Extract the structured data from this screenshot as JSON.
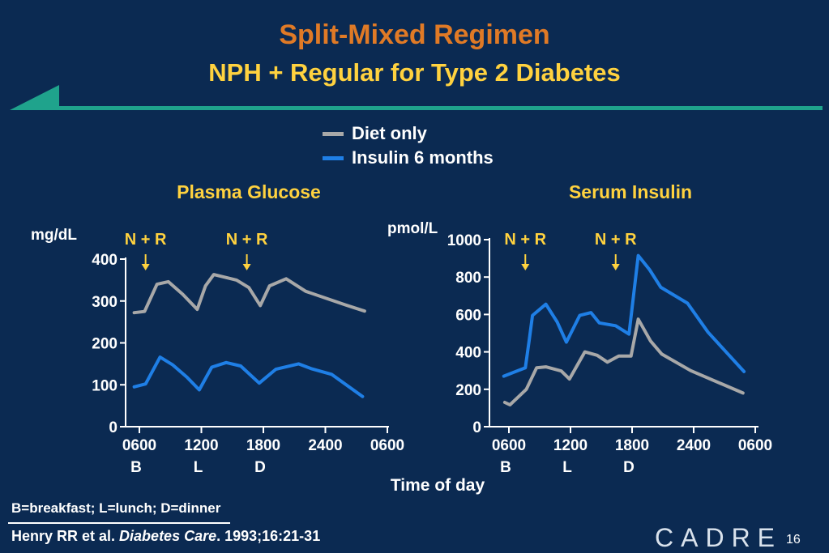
{
  "header": {
    "title": "Split-Mixed Regimen",
    "subtitle": "NPH + Regular for Type 2 Diabetes"
  },
  "legend": {
    "items": [
      {
        "label": "Diet only",
        "color": "#a8a8a8"
      },
      {
        "label": "Insulin 6 months",
        "color": "#1f7fe6"
      }
    ]
  },
  "colors": {
    "background": "#0b2a52",
    "accent": "#e07a26",
    "highlight": "#ffd23f",
    "teal": "#1fa38c"
  },
  "footer": {
    "time_label": "Time of day",
    "note": "B=breakfast; L=lunch; D=dinner",
    "citation_authors": "Henry RR et al. ",
    "citation_journal": "Diabetes Care",
    "citation_rest": ". 1993;16:21-31",
    "logo": "CADRE",
    "page_number": "16"
  },
  "chart_data": [
    {
      "type": "line",
      "title": "Plasma Glucose",
      "ylabel": "mg/dL",
      "ylim": [
        0,
        400
      ],
      "yticks": [
        0,
        100,
        200,
        300,
        400
      ],
      "xlim": [
        5.5,
        30
      ],
      "xticks": [
        {
          "x": 6,
          "label": "0600",
          "meal": "B"
        },
        {
          "x": 12,
          "label": "1200",
          "meal": "L"
        },
        {
          "x": 18,
          "label": "1800",
          "meal": "D"
        },
        {
          "x": 24,
          "label": "2400",
          "meal": ""
        },
        {
          "x": 30,
          "label": "0600",
          "meal": ""
        }
      ],
      "annotations": [
        {
          "x": 6.6,
          "label": "N + R"
        },
        {
          "x": 16.4,
          "label": "N + R"
        }
      ],
      "series": [
        {
          "name": "Diet only",
          "color": "#a8a8a8",
          "x": [
            5.5,
            6.5,
            7.7,
            8.8,
            10.2,
            11.6,
            12.4,
            13.2,
            15.4,
            16.6,
            17.7,
            18.6,
            20.2,
            22.1,
            25.9,
            27.8
          ],
          "y": [
            272,
            275,
            340,
            346,
            316,
            280,
            336,
            363,
            350,
            332,
            289,
            336,
            353,
            323,
            291,
            276
          ]
        },
        {
          "name": "Insulin 6 months",
          "color": "#1f7fe6",
          "x": [
            5.5,
            6.6,
            8.0,
            9.2,
            10.6,
            11.8,
            13.0,
            14.4,
            15.8,
            17.6,
            19.2,
            21.4,
            22.7,
            24.6,
            27.6
          ],
          "y": [
            95,
            102,
            166,
            148,
            118,
            88,
            142,
            153,
            145,
            104,
            137,
            150,
            138,
            125,
            72
          ]
        }
      ]
    },
    {
      "type": "line",
      "title": "Serum Insulin",
      "ylabel": "pmol/L",
      "ylim": [
        0,
        1000
      ],
      "yticks": [
        0,
        200,
        400,
        600,
        800,
        1000
      ],
      "xlim": [
        5.5,
        30
      ],
      "xticks": [
        {
          "x": 6,
          "label": "0600",
          "meal": "B"
        },
        {
          "x": 12,
          "label": "1200",
          "meal": "L"
        },
        {
          "x": 18,
          "label": "1800",
          "meal": "D"
        },
        {
          "x": 24,
          "label": "2400",
          "meal": ""
        },
        {
          "x": 30,
          "label": "0600",
          "meal": ""
        }
      ],
      "annotations": [
        {
          "x": 7.6,
          "label": "N + R"
        },
        {
          "x": 16.4,
          "label": "N + R"
        }
      ],
      "series": [
        {
          "name": "Diet only",
          "color": "#a8a8a8",
          "x": [
            5.6,
            6.1,
            7.7,
            8.7,
            9.6,
            11.1,
            11.9,
            13.4,
            14.6,
            15.6,
            16.7,
            17.9,
            18.6,
            19.8,
            20.9,
            23.7,
            28.8
          ],
          "y": [
            130,
            117,
            200,
            315,
            320,
            298,
            255,
            400,
            382,
            345,
            378,
            378,
            575,
            458,
            388,
            300,
            180
          ]
        },
        {
          "name": "Insulin 6 months",
          "color": "#1f7fe6",
          "x": [
            5.5,
            7.6,
            8.0,
            8.3,
            9.6,
            10.7,
            11.6,
            12.9,
            14.0,
            14.8,
            16.4,
            17.7,
            18.6,
            19.7,
            20.8,
            23.4,
            25.4,
            28.9
          ],
          "y": [
            270,
            315,
            470,
            595,
            655,
            560,
            452,
            595,
            610,
            555,
            540,
            495,
            915,
            840,
            745,
            660,
            505,
            295
          ]
        }
      ]
    }
  ]
}
